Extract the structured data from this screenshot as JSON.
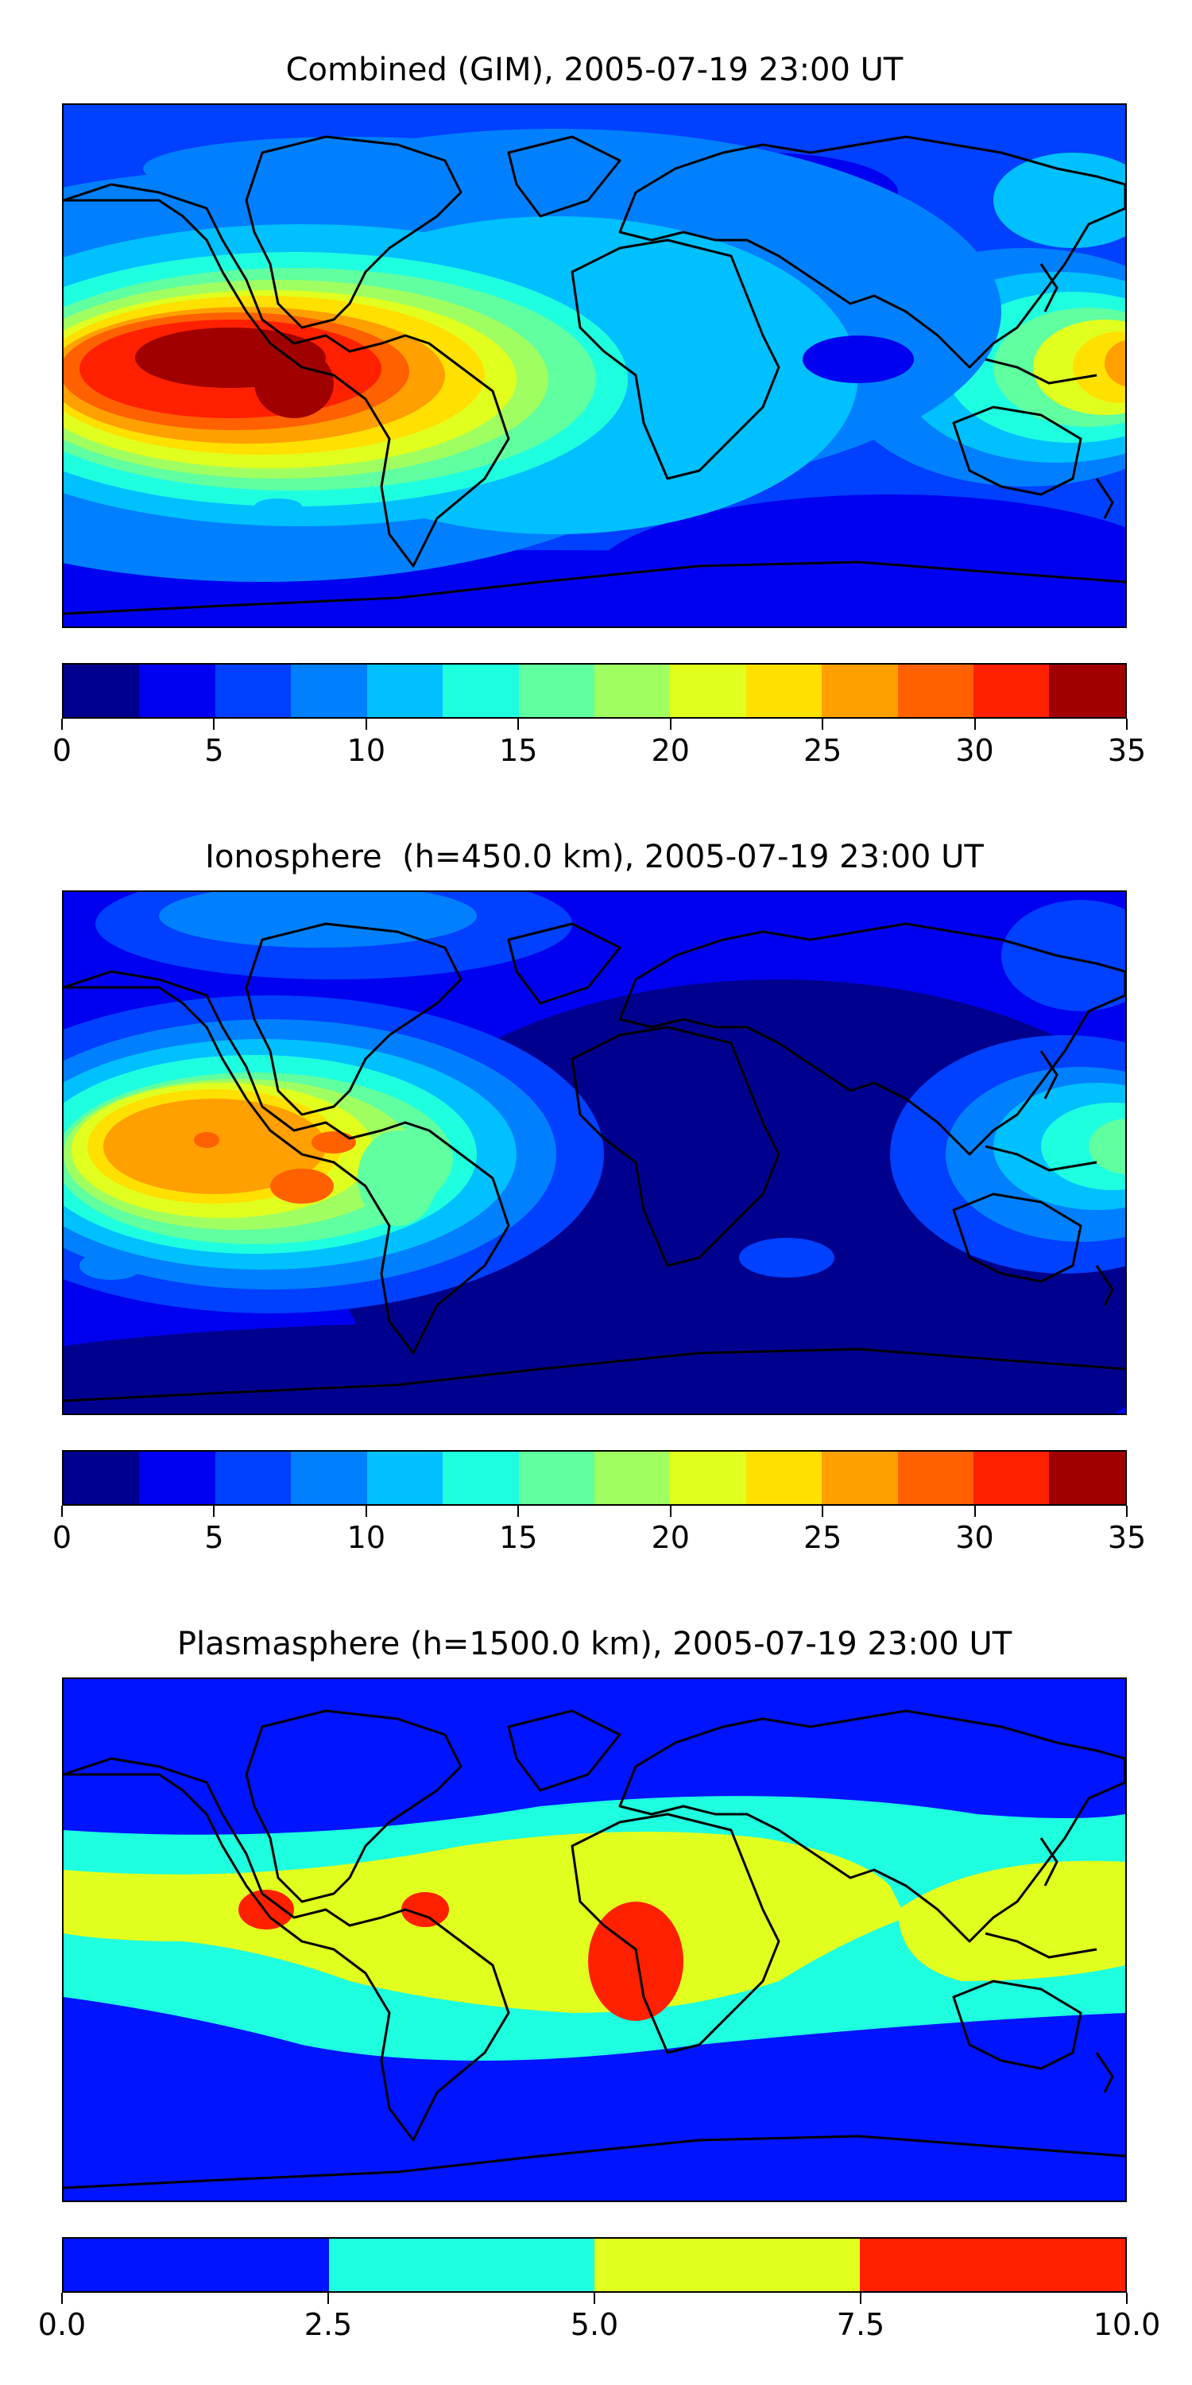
{
  "panels": [
    {
      "title": "Combined (GIM), 2005-07-19 23:00 UT",
      "colorbar": {
        "colors": [
          "#00008f",
          "#0000f0",
          "#0040ff",
          "#0080ff",
          "#00c0ff",
          "#1effe0",
          "#60ff9f",
          "#a0ff60",
          "#e0ff1e",
          "#ffe000",
          "#ff9f00",
          "#ff6000",
          "#ff2000",
          "#a00000"
        ],
        "ticks": [
          "0",
          "5",
          "10",
          "15",
          "20",
          "25",
          "30",
          "35"
        ]
      }
    },
    {
      "title": "Ionosphere  (h=450.0 km), 2005-07-19 23:00 UT",
      "colorbar": {
        "colors": [
          "#00008f",
          "#0000f0",
          "#0040ff",
          "#0080ff",
          "#00c0ff",
          "#1effe0",
          "#60ff9f",
          "#a0ff60",
          "#e0ff1e",
          "#ffe000",
          "#ff9f00",
          "#ff6000",
          "#ff2000",
          "#a00000"
        ],
        "ticks": [
          "0",
          "5",
          "10",
          "15",
          "20",
          "25",
          "30",
          "35"
        ]
      }
    },
    {
      "title": "Plasmasphere (h=1500.0 km), 2005-07-19 23:00 UT",
      "colorbar": {
        "colors": [
          "#0014ff",
          "#1effe0",
          "#e0ff1e",
          "#ff2000"
        ],
        "ticks": [
          "0.0",
          "2.5",
          "5.0",
          "7.5",
          "10.0"
        ]
      }
    }
  ]
}
